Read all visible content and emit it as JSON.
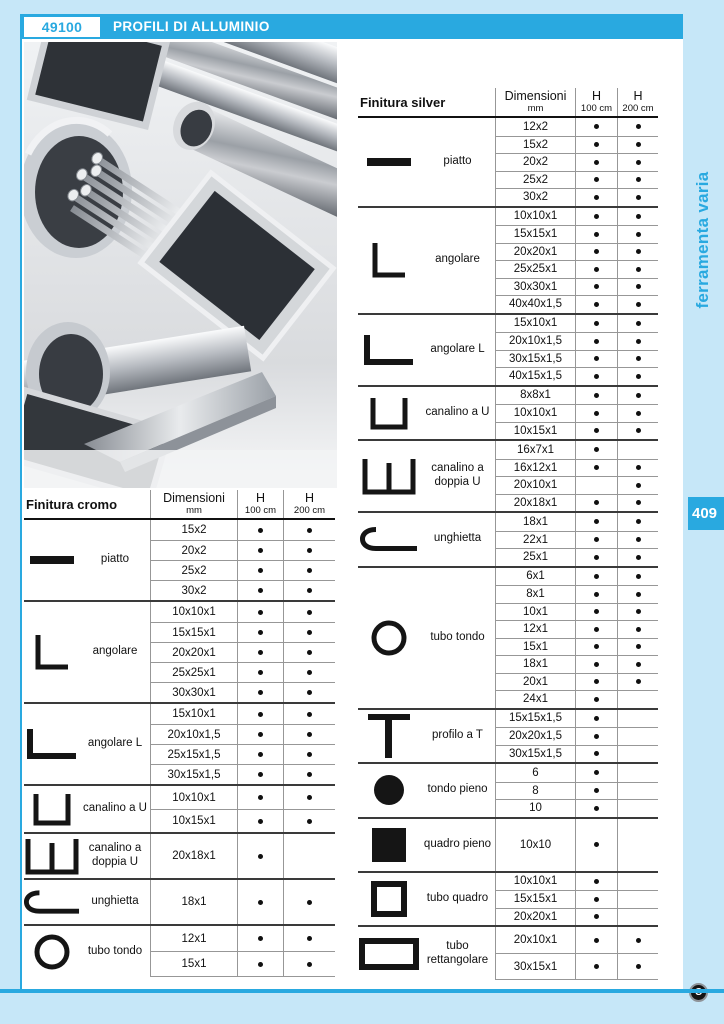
{
  "page": {
    "code": "49100",
    "title": "PROFILI DI ALLUMINIO",
    "side_tab": "ferramenta varia",
    "page_number": "409",
    "logo_letter": "C",
    "accent_color": "#29a9e0",
    "page_bg_color": "#c6e7f8",
    "photo_alt": "assorted aluminium profiles: square tubes, round tubes, angles, rods"
  },
  "tables": [
    {
      "id": "cromo",
      "title": "Finitura cromo",
      "columns": {
        "dim": "Dimensioni",
        "dim_sub": "mm",
        "h": "H",
        "h1_sub": "100 cm",
        "h2_sub": "200 cm"
      },
      "groups": [
        {
          "icon": "piatto",
          "label": "piatto",
          "rows": [
            [
              "15x2",
              1,
              1
            ],
            [
              "20x2",
              1,
              1
            ],
            [
              "25x2",
              1,
              1
            ],
            [
              "30x2",
              1,
              1
            ]
          ]
        },
        {
          "icon": "angolare",
          "label": "angolare",
          "rows": [
            [
              "10x10x1",
              1,
              1
            ],
            [
              "15x15x1",
              1,
              1
            ],
            [
              "20x20x1",
              1,
              1
            ],
            [
              "25x25x1",
              1,
              1
            ],
            [
              "30x30x1",
              1,
              1
            ]
          ]
        },
        {
          "icon": "angolare-l",
          "label": "angolare L",
          "rows": [
            [
              "15x10x1",
              1,
              1
            ],
            [
              "20x10x1,5",
              1,
              1
            ],
            [
              "25x15x1,5",
              1,
              1
            ],
            [
              "30x15x1,5",
              1,
              1
            ]
          ]
        },
        {
          "icon": "canalino-u",
          "label": "canalino a U",
          "rows": [
            [
              "10x10x1",
              1,
              1
            ],
            [
              "10x15x1",
              1,
              1
            ]
          ]
        },
        {
          "icon": "canalino-doppia-u",
          "label": "canalino a doppia U",
          "rows": [
            [
              "20x18x1",
              1,
              0
            ]
          ]
        },
        {
          "icon": "unghietta",
          "label": "unghietta",
          "rows": [
            [
              "18x1",
              1,
              1
            ]
          ]
        },
        {
          "icon": "tubo-tondo",
          "label": "tubo tondo",
          "rows": [
            [
              "12x1",
              1,
              1
            ],
            [
              "15x1",
              1,
              1
            ]
          ]
        }
      ]
    },
    {
      "id": "silver",
      "title": "Finitura silver",
      "columns": {
        "dim": "Dimensioni",
        "dim_sub": "mm",
        "h": "H",
        "h1_sub": "100 cm",
        "h2_sub": "200 cm"
      },
      "groups": [
        {
          "icon": "piatto",
          "label": "piatto",
          "rows": [
            [
              "12x2",
              1,
              1
            ],
            [
              "15x2",
              1,
              1
            ],
            [
              "20x2",
              1,
              1
            ],
            [
              "25x2",
              1,
              1
            ],
            [
              "30x2",
              1,
              1
            ]
          ]
        },
        {
          "icon": "angolare",
          "label": "angolare",
          "rows": [
            [
              "10x10x1",
              1,
              1
            ],
            [
              "15x15x1",
              1,
              1
            ],
            [
              "20x20x1",
              1,
              1
            ],
            [
              "25x25x1",
              1,
              1
            ],
            [
              "30x30x1",
              1,
              1
            ],
            [
              "40x40x1,5",
              1,
              1
            ]
          ]
        },
        {
          "icon": "angolare-l",
          "label": "angolare L",
          "rows": [
            [
              "15x10x1",
              1,
              1
            ],
            [
              "20x10x1,5",
              1,
              1
            ],
            [
              "30x15x1,5",
              1,
              1
            ],
            [
              "40x15x1,5",
              1,
              1
            ]
          ]
        },
        {
          "icon": "canalino-u",
          "label": "canalino a U",
          "rows": [
            [
              "8x8x1",
              1,
              1
            ],
            [
              "10x10x1",
              1,
              1
            ],
            [
              "10x15x1",
              1,
              1
            ]
          ]
        },
        {
          "icon": "canalino-doppia-u",
          "label": "canalino a doppia U",
          "rows": [
            [
              "16x7x1",
              1,
              0
            ],
            [
              "16x12x1",
              1,
              1
            ],
            [
              "20x10x1",
              0,
              1
            ],
            [
              "20x18x1",
              1,
              1
            ]
          ]
        },
        {
          "icon": "unghietta",
          "label": "unghietta",
          "rows": [
            [
              "18x1",
              1,
              1
            ],
            [
              "22x1",
              1,
              1
            ],
            [
              "25x1",
              1,
              1
            ]
          ]
        },
        {
          "icon": "tubo-tondo",
          "label": "tubo tondo",
          "rows": [
            [
              "6x1",
              1,
              1
            ],
            [
              "8x1",
              1,
              1
            ],
            [
              "10x1",
              1,
              1
            ],
            [
              "12x1",
              1,
              1
            ],
            [
              "15x1",
              1,
              1
            ],
            [
              "18x1",
              1,
              1
            ],
            [
              "20x1",
              1,
              1
            ],
            [
              "24x1",
              1,
              0
            ]
          ]
        },
        {
          "icon": "profilo-t",
          "label": "profilo a T",
          "rows": [
            [
              "15x15x1,5",
              1,
              0
            ],
            [
              "20x20x1,5",
              1,
              0
            ],
            [
              "30x15x1,5",
              1,
              0
            ]
          ]
        },
        {
          "icon": "tondo-pieno",
          "label": "tondo pieno",
          "rows": [
            [
              "6",
              1,
              0
            ],
            [
              "8",
              1,
              0
            ],
            [
              "10",
              1,
              0
            ]
          ]
        },
        {
          "icon": "quadro-pieno",
          "label": "quadro pieno",
          "rows": [
            [
              "10x10",
              1,
              0
            ]
          ]
        },
        {
          "icon": "tubo-quadro",
          "label": "tubo quadro",
          "rows": [
            [
              "10x10x1",
              1,
              0
            ],
            [
              "15x15x1",
              1,
              0
            ],
            [
              "20x20x1",
              1,
              0
            ]
          ]
        },
        {
          "icon": "tubo-rettangolare",
          "label": "tubo rettangolare",
          "rows": [
            [
              "20x10x1",
              1,
              1
            ],
            [
              "30x15x1",
              1,
              1
            ]
          ]
        }
      ]
    }
  ]
}
